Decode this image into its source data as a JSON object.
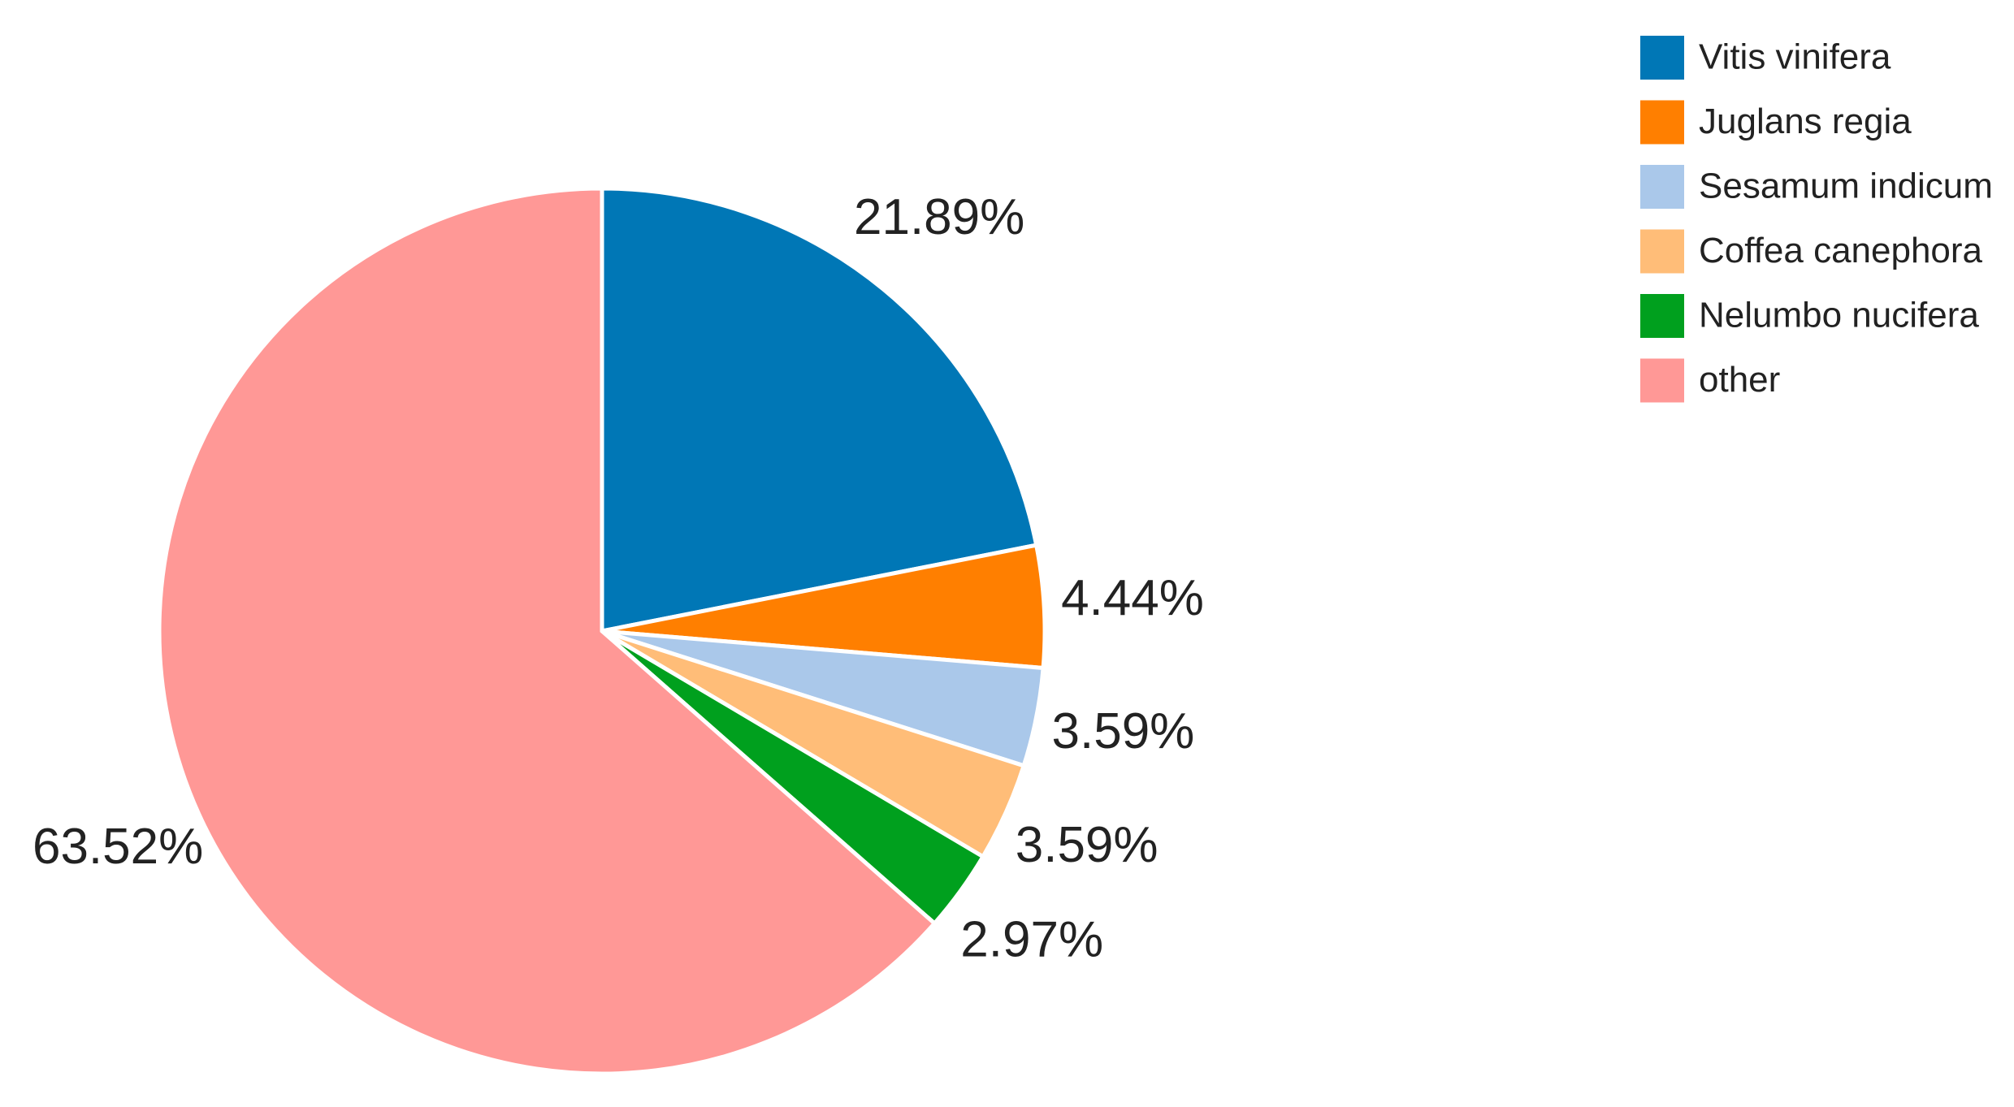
{
  "chart_data": {
    "type": "pie",
    "categories": [
      "Vitis vinifera",
      "Juglans regia",
      "Sesamum indicum",
      "Coffea canephora",
      "Nelumbo nucifera",
      "other"
    ],
    "values": [
      21.89,
      4.44,
      3.59,
      3.59,
      2.97,
      63.52
    ],
    "value_labels": [
      "21.89%",
      "4.44%",
      "3.59%",
      "3.59%",
      "2.97%",
      "63.52%"
    ],
    "colors": [
      "#0077b6",
      "#ff7f00",
      "#aac8ea",
      "#ffbd78",
      "#00a01e",
      "#ff9896"
    ],
    "legend": "top-right"
  }
}
